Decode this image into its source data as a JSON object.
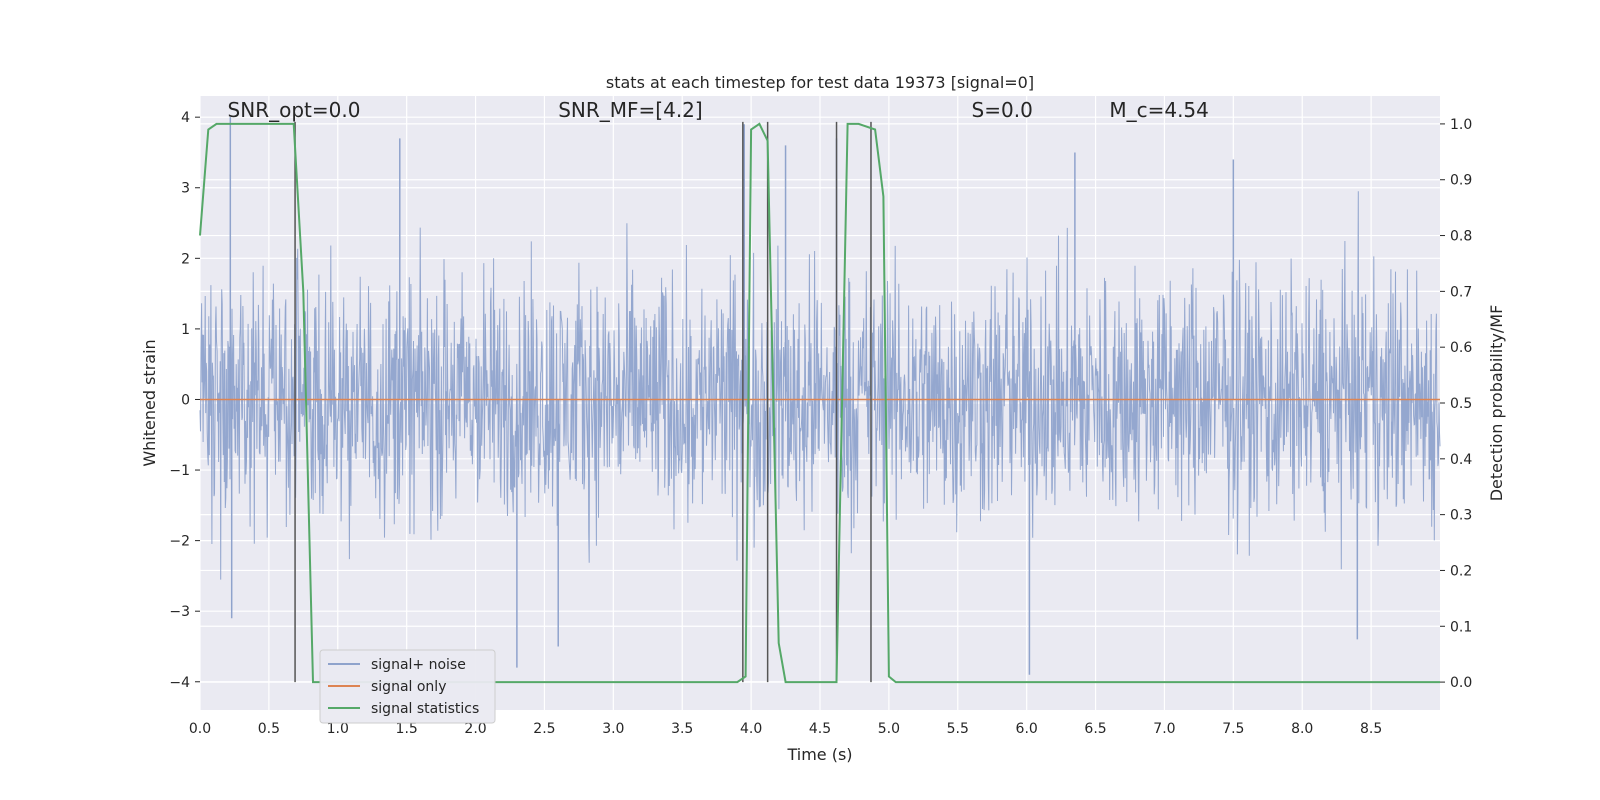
{
  "chart_data": {
    "type": "line",
    "title": "stats at each timestep for test data 19373 [signal=0]",
    "xlabel": "Time (s)",
    "ylabel_left": "Whitened strain",
    "ylabel_right": "Detection probability/MF",
    "xlim": [
      0.0,
      9.0
    ],
    "ylim_left": [
      -4.4,
      4.3
    ],
    "ylim_right": [
      -0.05,
      1.05
    ],
    "x_ticks": [
      "0.0",
      "0.5",
      "1.0",
      "1.5",
      "2.0",
      "2.5",
      "3.0",
      "3.5",
      "4.0",
      "4.5",
      "5.0",
      "5.5",
      "6.0",
      "6.5",
      "7.0",
      "7.5",
      "8.0",
      "8.5"
    ],
    "y_ticks_left": [
      "−4",
      "−3",
      "−2",
      "−1",
      "0",
      "1",
      "2",
      "3",
      "4"
    ],
    "y_ticks_right": [
      "0.0",
      "0.1",
      "0.2",
      "0.3",
      "0.4",
      "0.5",
      "0.6",
      "0.7",
      "0.8",
      "0.9",
      "1.0"
    ],
    "grid": true,
    "legend_position": "lower-left",
    "annotations": [
      {
        "id": "snr-opt",
        "text": "SNR_opt=0.0",
        "x": 0.2,
        "y": 4.1
      },
      {
        "id": "snr-mf",
        "text": "SNR_MF=[4.2]",
        "x": 2.6,
        "y": 4.1
      },
      {
        "id": "s-value",
        "text": "S=0.0",
        "x": 5.6,
        "y": 4.1
      },
      {
        "id": "mc-value",
        "text": "M_c=4.54",
        "x": 6.6,
        "y": 4.1
      }
    ],
    "series": [
      {
        "name": "signal+ noise",
        "axis": "left",
        "color": "#8fa3cc",
        "description": "dense whitened-strain noise, approx. between -2.5 and 2.5 with spikes to about +/-4",
        "envelope_upper": 2.3,
        "envelope_lower": -2.2,
        "spikes": [
          {
            "x": 0.22,
            "y": 4.0
          },
          {
            "x": 0.23,
            "y": -3.1
          },
          {
            "x": 1.45,
            "y": 3.7
          },
          {
            "x": 2.3,
            "y": -3.8
          },
          {
            "x": 2.6,
            "y": -3.5
          },
          {
            "x": 3.95,
            "y": 3.9
          },
          {
            "x": 4.25,
            "y": 3.6
          },
          {
            "x": 4.62,
            "y": 3.7
          },
          {
            "x": 6.02,
            "y": -3.9
          },
          {
            "x": 6.35,
            "y": 3.5
          },
          {
            "x": 7.5,
            "y": 3.4
          },
          {
            "x": 8.4,
            "y": -3.4
          }
        ]
      },
      {
        "name": "signal only",
        "axis": "left",
        "color": "#dd8452",
        "x": [
          0.0,
          9.0
        ],
        "y": [
          0.0,
          0.0
        ]
      },
      {
        "name": "signal statistics",
        "axis": "right",
        "color": "#55a868",
        "x": [
          0.0,
          0.06,
          0.12,
          0.3,
          0.68,
          0.75,
          0.82,
          3.9,
          3.96,
          4.0,
          4.06,
          4.12,
          4.2,
          4.25,
          4.62,
          4.7,
          4.78,
          4.9,
          4.96,
          5.0,
          5.05,
          6.3,
          9.0
        ],
        "y": [
          0.8,
          0.99,
          1.0,
          1.0,
          1.0,
          0.7,
          0.0,
          0.0,
          0.01,
          0.99,
          1.0,
          0.97,
          0.07,
          0.0,
          0.0,
          1.0,
          1.0,
          0.99,
          0.87,
          0.01,
          0.0,
          0.0,
          0.0
        ]
      }
    ],
    "markers": {
      "color": "#555555",
      "description": "vertical lines",
      "x": [
        0.69,
        3.94,
        4.12,
        4.62,
        4.87
      ]
    }
  }
}
